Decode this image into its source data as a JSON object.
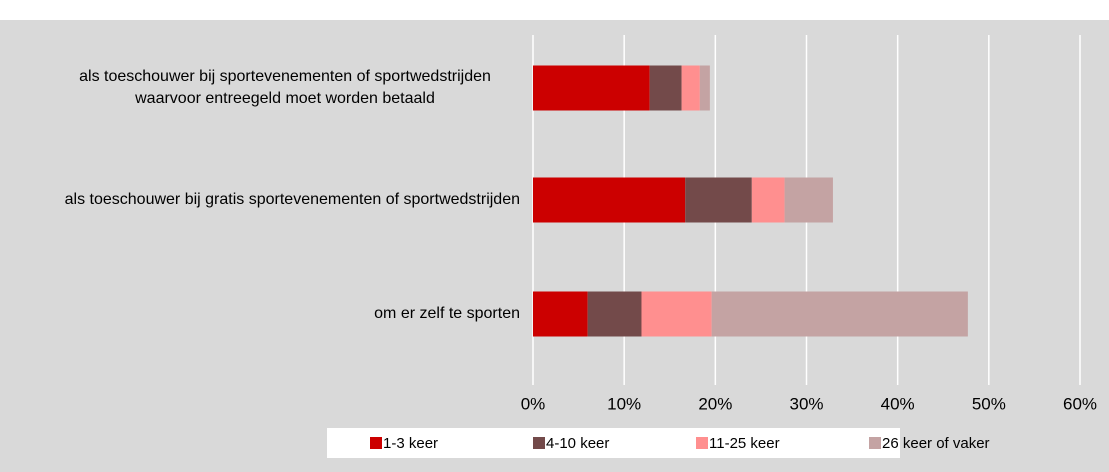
{
  "chart_data": {
    "type": "stacked-bar-horizontal",
    "categories": [
      "als toeschouwer bij sportevenementen of sportwedstrijden waarvoor entreegeld moet worden betaald",
      "als toeschouwer bij gratis sportevenementen of sportwedstrijden",
      "om er zelf te sporten"
    ],
    "series": [
      {
        "name": "1-3 keer",
        "color": "#cc0000",
        "values": [
          12.8,
          16.7,
          6.0
        ]
      },
      {
        "name": "4-10 keer",
        "color": "#734a4a",
        "values": [
          3.5,
          7.3,
          5.9
        ]
      },
      {
        "name": "11-25 keer",
        "color": "#ff8f8f",
        "values": [
          2.0,
          3.6,
          7.7
        ]
      },
      {
        "name": "26 keer of vaker",
        "color": "#c4a3a3",
        "values": [
          1.1,
          5.3,
          28.1
        ]
      }
    ],
    "xlim": [
      0,
      60
    ],
    "xticks": [
      {
        "value": 0,
        "label": "0%"
      },
      {
        "value": 10,
        "label": "10%"
      },
      {
        "value": 20,
        "label": "20%"
      },
      {
        "value": 30,
        "label": "30%"
      },
      {
        "value": 40,
        "label": "40%"
      },
      {
        "value": 50,
        "label": "50%"
      },
      {
        "value": 60,
        "label": "60%"
      }
    ],
    "grid": true,
    "legend": "bottom"
  }
}
